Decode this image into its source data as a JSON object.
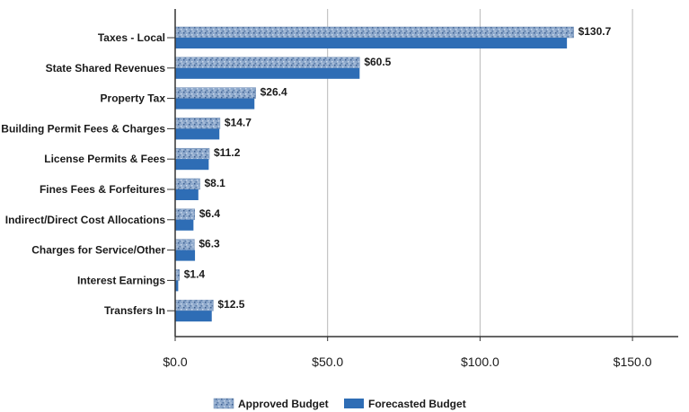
{
  "chart_data": {
    "type": "bar",
    "orientation": "horizontal",
    "categories": [
      "Taxes - Local",
      "State Shared Revenues",
      "Property Tax",
      "Building Permit Fees & Charges",
      "License Permits & Fees",
      "Fines Fees & Forfeitures",
      "Indirect/Direct Cost Allocations",
      "Charges for Service/Other",
      "Interest Earnings",
      "Transfers In"
    ],
    "series": [
      {
        "name": "Approved Budget",
        "values": [
          130.7,
          60.5,
          26.4,
          14.7,
          11.2,
          8.1,
          6.4,
          6.3,
          1.4,
          12.5
        ],
        "color": "#7a9cc4",
        "pattern": "speckled"
      },
      {
        "name": "Forecasted Budget",
        "values": [
          128.5,
          60.5,
          26.0,
          14.5,
          11.0,
          7.6,
          6.0,
          6.5,
          1.0,
          12.0
        ],
        "color": "#2e6db5"
      }
    ],
    "data_labels": [
      "$130.7",
      "$60.5",
      "$26.4",
      "$14.7",
      "$11.2",
      "$8.1",
      "$6.4",
      "$6.3",
      "$1.4",
      "$12.5"
    ],
    "x_ticks": [
      "$0.0",
      "$50.0",
      "$100.0",
      "$150.0"
    ],
    "xlim": [
      0,
      165
    ],
    "grid": true,
    "legend_position": "bottom",
    "title": "",
    "xlabel": "",
    "ylabel": ""
  }
}
